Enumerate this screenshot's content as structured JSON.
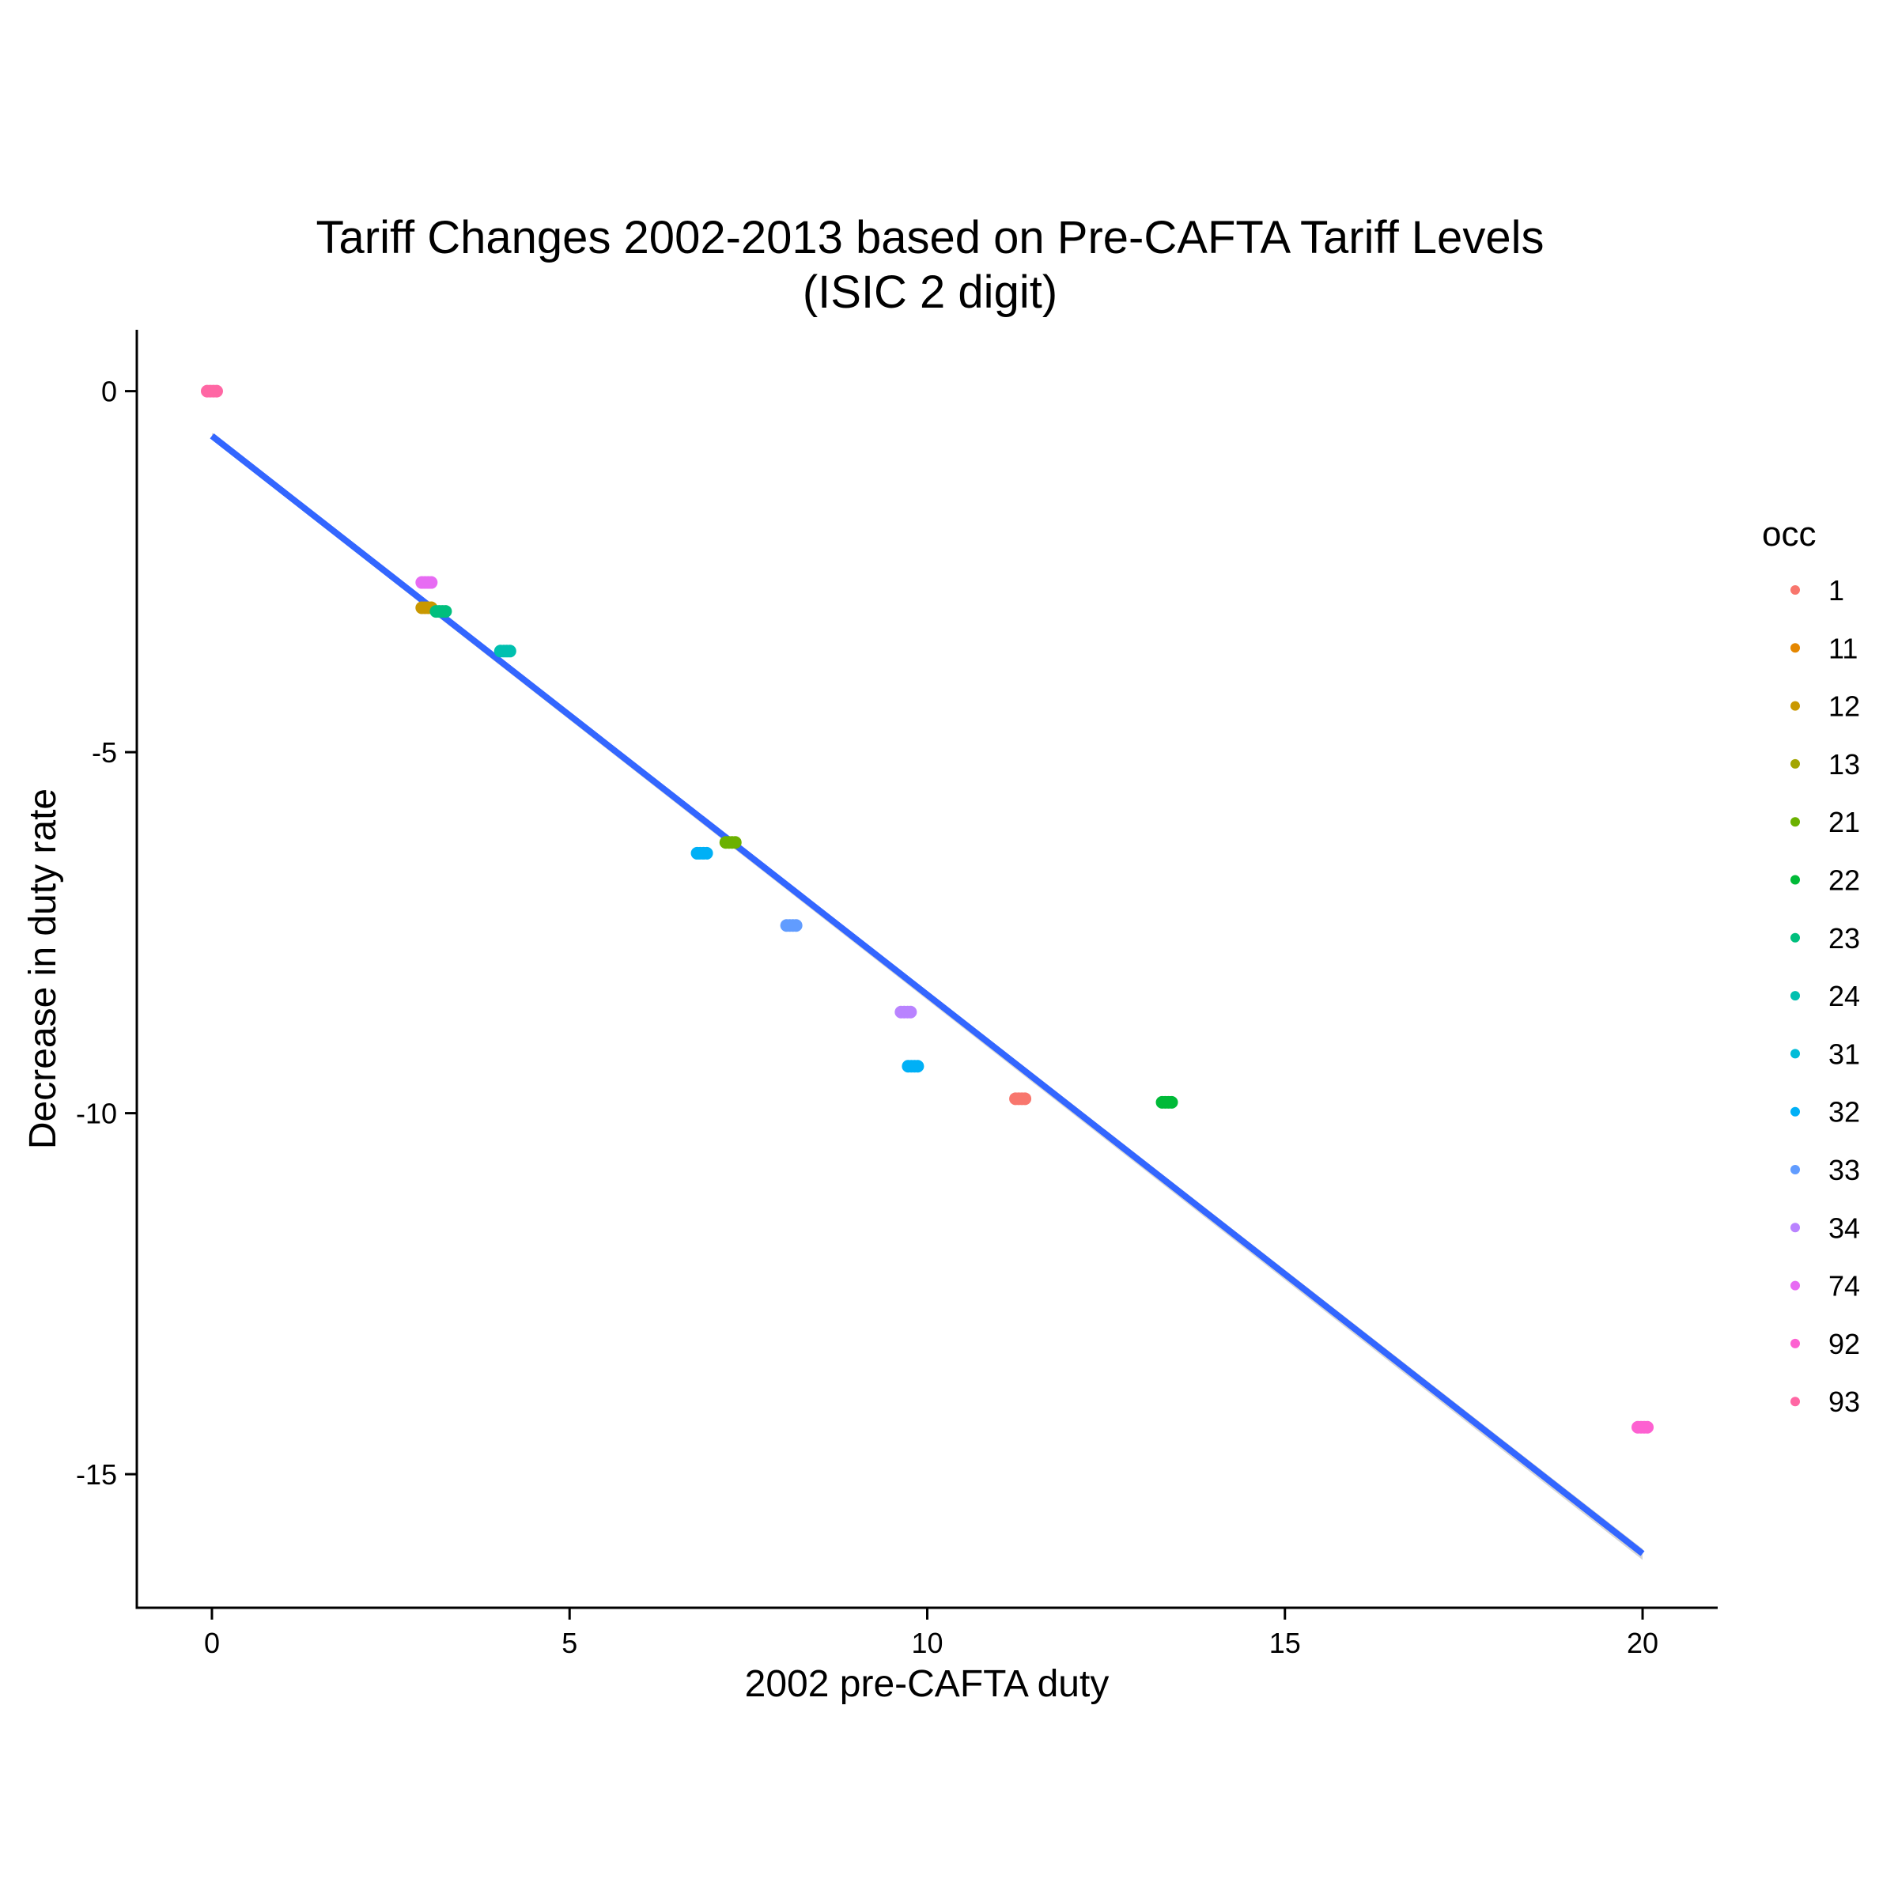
{
  "chart_data": {
    "type": "scatter",
    "title": [
      "Tariff Changes 2002-2013 based on Pre-CAFTA Tariff Levels",
      "(ISIC 2 digit)"
    ],
    "xlabel": "2002 pre-CAFTA duty",
    "ylabel": "Decrease in duty rate",
    "xlim": [
      -1.05,
      21.05
    ],
    "ylim": [
      -16.85,
      0.85
    ],
    "x_ticks": [
      0,
      5,
      10,
      15,
      20
    ],
    "y_ticks": [
      0,
      -5,
      -10,
      -15
    ],
    "grid": false,
    "legend": {
      "title": "occ",
      "placement": "right"
    },
    "series": [
      {
        "name": "1",
        "color": "#F8766D",
        "x": [
          11.3
        ],
        "y": [
          -9.8
        ]
      },
      {
        "name": "11",
        "color": "#E58700",
        "x": [],
        "y": []
      },
      {
        "name": "12",
        "color": "#C99800",
        "x": [
          3.0
        ],
        "y": [
          -3.0
        ]
      },
      {
        "name": "13",
        "color": "#A3A500",
        "x": [],
        "y": []
      },
      {
        "name": "21",
        "color": "#6BB100",
        "x": [
          7.25
        ],
        "y": [
          -6.25
        ]
      },
      {
        "name": "22",
        "color": "#00BA38",
        "x": [
          13.35
        ],
        "y": [
          -9.85
        ]
      },
      {
        "name": "23",
        "color": "#00BF7D",
        "x": [
          3.2
        ],
        "y": [
          -3.05
        ]
      },
      {
        "name": "24",
        "color": "#00C0AF",
        "x": [
          4.1
        ],
        "y": [
          -3.6
        ]
      },
      {
        "name": "31",
        "color": "#00BCD8",
        "x": [],
        "y": []
      },
      {
        "name": "32",
        "color": "#00B0F6",
        "x": [
          6.85,
          9.8
        ],
        "y": [
          -6.4,
          -9.35
        ]
      },
      {
        "name": "33",
        "color": "#619CFF",
        "x": [
          8.1
        ],
        "y": [
          -7.4
        ]
      },
      {
        "name": "34",
        "color": "#B983FF",
        "x": [
          9.7
        ],
        "y": [
          -8.6
        ]
      },
      {
        "name": "74",
        "color": "#E76BF3",
        "x": [
          3.0
        ],
        "y": [
          -2.65
        ]
      },
      {
        "name": "92",
        "color": "#FD61D1",
        "x": [
          20.0
        ],
        "y": [
          -14.35
        ]
      },
      {
        "name": "93",
        "color": "#FF67A4",
        "x": [
          0.0
        ],
        "y": [
          0.0
        ]
      }
    ],
    "fit_line": {
      "type": "linear",
      "color": "#3366ff",
      "x": [
        0,
        20
      ],
      "y": [
        -0.62,
        -16.1
      ]
    }
  }
}
